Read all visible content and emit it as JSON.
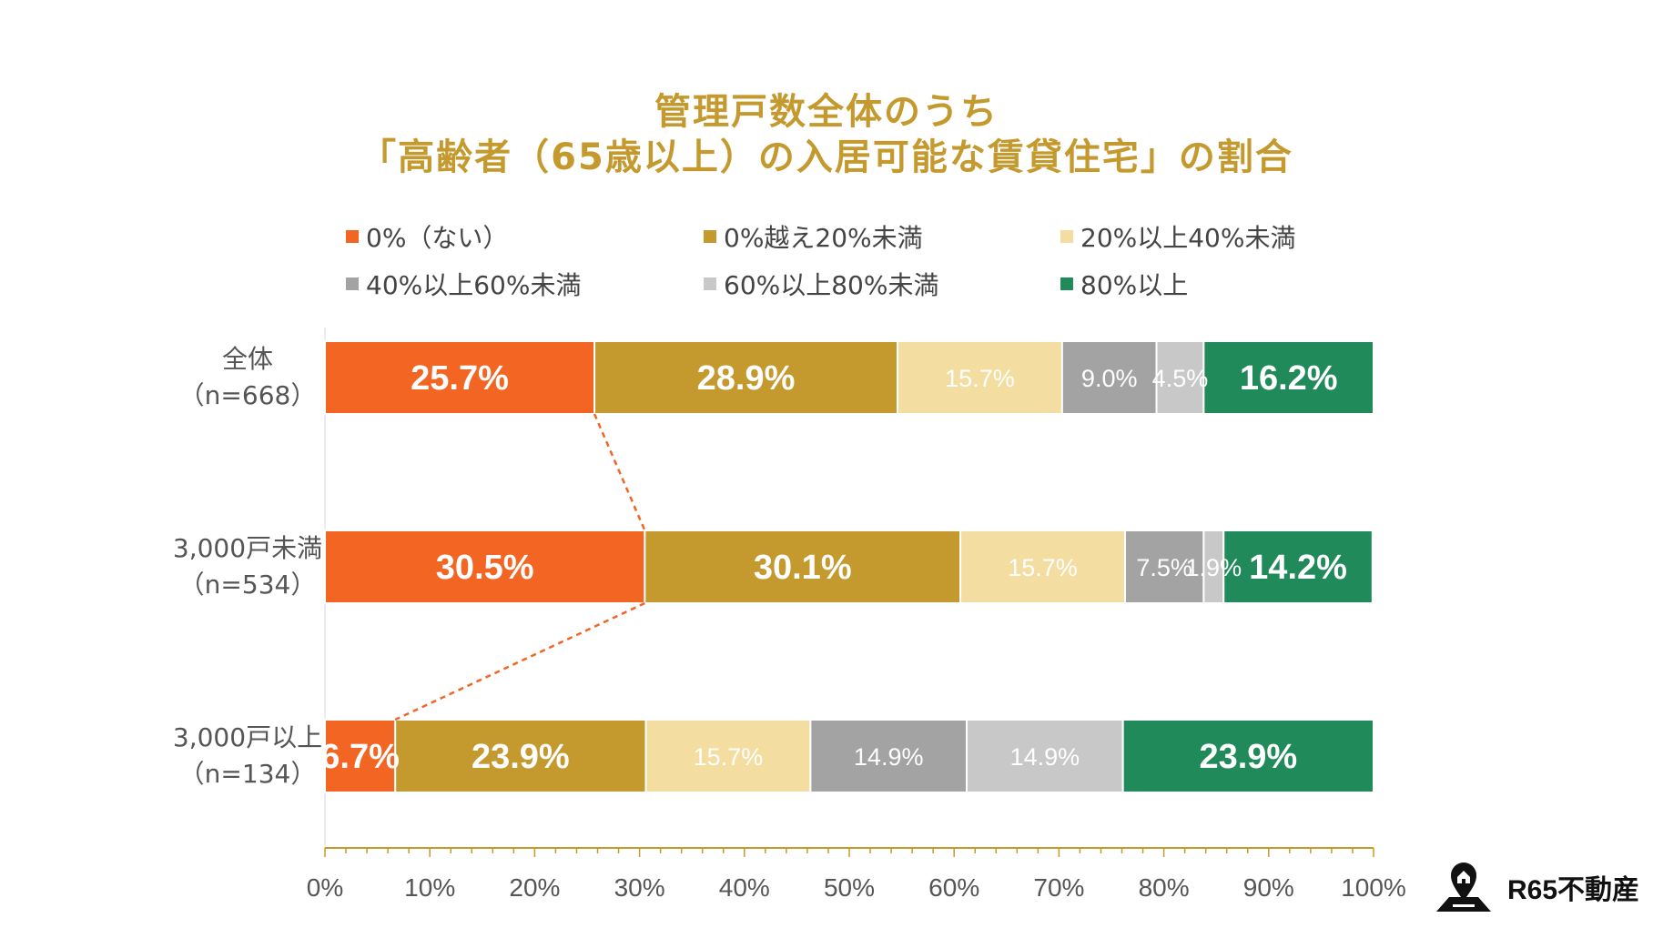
{
  "chart_data": {
    "type": "bar",
    "orientation": "horizontal",
    "stacked": true,
    "title_line1": "管理戸数全体のうち",
    "title_line2": "「高齢者（65歳以上）の入居可能な賃貸住宅」の割合",
    "categories": [
      {
        "name": "全体",
        "n": "（n=668）"
      },
      {
        "name": "3,000戸未満",
        "n": "（n=534）"
      },
      {
        "name": "3,000戸以上",
        "n": "（n=134）"
      }
    ],
    "series": [
      {
        "name": "0%（ない）",
        "color": "#F26522",
        "label_color": "#ffffff",
        "label_bold": true,
        "values": [
          25.7,
          30.5,
          6.7
        ],
        "labels": [
          "25.7%",
          "30.5%",
          "6.7%"
        ]
      },
      {
        "name": "0%越え20%未満",
        "color": "#C49A2F",
        "label_color": "#ffffff",
        "label_bold": true,
        "values": [
          28.9,
          30.1,
          23.9
        ],
        "labels": [
          "28.9%",
          "30.1%",
          "23.9%"
        ]
      },
      {
        "name": "20%以上40%未満",
        "color": "#F3DDA0",
        "label_color": "#ffffff",
        "label_bold": false,
        "values": [
          15.7,
          15.7,
          15.7
        ],
        "labels": [
          "15.7%",
          "15.7%",
          "15.7%"
        ]
      },
      {
        "name": "40%以上60%未満",
        "color": "#A3A3A3",
        "label_color": "#ffffff",
        "label_bold": false,
        "values": [
          9.0,
          7.5,
          14.9
        ],
        "labels": [
          "9.0%",
          "7.5%",
          "14.9%"
        ]
      },
      {
        "name": "60%以上80%未満",
        "color": "#C8C8C8",
        "label_color": "#ffffff",
        "label_bold": false,
        "values": [
          4.5,
          1.9,
          14.9
        ],
        "labels": [
          "4.5%",
          "1.9%",
          "14.9%"
        ]
      },
      {
        "name": "80%以上",
        "color": "#218A5B",
        "label_color": "#ffffff",
        "label_bold": true,
        "values": [
          16.2,
          14.2,
          23.9
        ],
        "labels": [
          "16.2%",
          "14.2%",
          "23.9%"
        ]
      }
    ],
    "xlim": [
      0,
      100
    ],
    "xticks": [
      "0%",
      "10%",
      "20%",
      "30%",
      "40%",
      "50%",
      "60%",
      "70%",
      "80%",
      "90%",
      "100%"
    ],
    "legend_position": "top",
    "connector_color": "#F26522"
  },
  "brand": {
    "name": "R65不動産"
  }
}
